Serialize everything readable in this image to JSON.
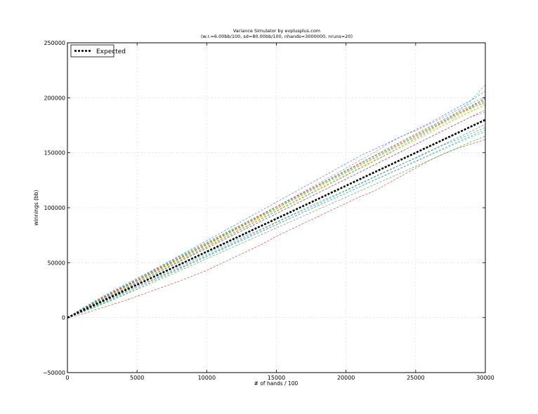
{
  "chart_data": {
    "type": "line",
    "title": "Variance Simulator by evplusplus.com",
    "subtitle": "(w.r.=6.00bb/100, sd=80.00bb/100, nhands=3000000, nruns=20)",
    "xlabel": "# of hands / 100",
    "ylabel": "winnings (bb)",
    "xlim": [
      0,
      30000
    ],
    "ylim": [
      -50000,
      250000
    ],
    "xticks": [
      0,
      5000,
      10000,
      15000,
      20000,
      25000,
      30000
    ],
    "xtick_labels": [
      "0",
      "5000",
      "10000",
      "15000",
      "20000",
      "25000",
      "30000"
    ],
    "yticks": [
      -50000,
      0,
      50000,
      100000,
      150000,
      200000,
      250000
    ],
    "ytick_labels": [
      "−50000",
      "0",
      "50000",
      "100000",
      "150000",
      "200000",
      "250000"
    ],
    "grid": true,
    "legend": {
      "position": "top-left",
      "entries": [
        "Expected"
      ]
    },
    "x": [
      0,
      1000,
      2000,
      3000,
      4000,
      5000,
      6000,
      7000,
      8000,
      9000,
      10000,
      11000,
      12000,
      13000,
      14000,
      15000,
      16000,
      17000,
      18000,
      19000,
      20000,
      21000,
      22000,
      23000,
      24000,
      25000,
      26000,
      27000,
      28000,
      29000,
      30000
    ],
    "series": [
      {
        "name": "Expected",
        "color": "#000000",
        "values": [
          0,
          6000,
          12000,
          18000,
          24000,
          30000,
          36000,
          42000,
          48000,
          54000,
          60000,
          66000,
          72000,
          78000,
          84000,
          90000,
          96000,
          102000,
          108000,
          114000,
          120000,
          126000,
          132000,
          138000,
          144000,
          150000,
          156000,
          162000,
          168000,
          174000,
          180000
        ]
      },
      {
        "color": "#1f77b4",
        "values": [
          0,
          7000,
          13500,
          20500,
          27000,
          33500,
          40000,
          46500,
          53000,
          60000,
          66500,
          73000,
          79500,
          86000,
          92500,
          99000,
          106000,
          112500,
          119000,
          125500,
          132000,
          138500,
          145000,
          152000,
          158500,
          165000,
          171500,
          178000,
          185000,
          192000,
          200000
        ]
      },
      {
        "color": "#2ca02c",
        "values": [
          0,
          5000,
          10500,
          16000,
          22000,
          28000,
          34000,
          40000,
          46000,
          52000,
          58000,
          64000,
          70000,
          75500,
          81000,
          87000,
          93000,
          99000,
          105000,
          110500,
          116000,
          122000,
          128000,
          134000,
          139500,
          145000,
          151000,
          157000,
          162000,
          167500,
          173000
        ]
      },
      {
        "color": "#d62728",
        "values": [
          0,
          3000,
          7000,
          11000,
          15000,
          19500,
          24000,
          28500,
          33000,
          38000,
          43000,
          49000,
          55000,
          61000,
          67000,
          74000,
          80000,
          86000,
          92000,
          98000,
          104000,
          110000,
          115000,
          122000,
          129000,
          136000,
          143000,
          149000,
          154000,
          158000,
          162000
        ]
      },
      {
        "color": "#9467bd",
        "values": [
          0,
          8000,
          15000,
          22000,
          28500,
          34000,
          40500,
          47000,
          53500,
          60000,
          67000,
          73500,
          80000,
          87000,
          94000,
          101000,
          108000,
          115000,
          122000,
          129000,
          136000,
          143000,
          150000,
          158000,
          165000,
          170000,
          176000,
          182000,
          189000,
          195000,
          201000
        ]
      },
      {
        "color": "#17becf",
        "values": [
          0,
          6500,
          13000,
          19000,
          25500,
          32000,
          38500,
          45000,
          51500,
          58000,
          64500,
          71000,
          77500,
          84000,
          90500,
          97000,
          103500,
          110000,
          116500,
          123000,
          129500,
          136000,
          142500,
          149000,
          156000,
          163000,
          170000,
          178000,
          187000,
          198000,
          212000
        ]
      },
      {
        "color": "#bcbd22",
        "values": [
          0,
          7500,
          14000,
          20000,
          26500,
          33000,
          39500,
          46000,
          52000,
          58500,
          65000,
          71500,
          78000,
          84500,
          91000,
          97500,
          104000,
          110500,
          117000,
          123500,
          130000,
          136500,
          143000,
          149500,
          156000,
          162500,
          169000,
          175500,
          182000,
          188000,
          194000
        ]
      },
      {
        "color": "#ff7f0e",
        "values": [
          0,
          6800,
          13800,
          20600,
          27200,
          33900,
          40600,
          47100,
          53700,
          60200,
          66700,
          73200,
          79800,
          86300,
          92800,
          99300,
          105800,
          112300,
          118800,
          125300,
          131800,
          138300,
          144800,
          151200,
          157700,
          164200,
          170700,
          177200,
          183700,
          190100,
          196600
        ]
      },
      {
        "color": "#1f77b4",
        "values": [
          0,
          5500,
          11500,
          17000,
          22500,
          28000,
          33500,
          39000,
          44500,
          50500,
          56500,
          62500,
          68500,
          74500,
          80500,
          86500,
          92500,
          98000,
          103500,
          109500,
          115500,
          121500,
          127500,
          133500,
          139500,
          145500,
          151500,
          157500,
          163500,
          169500,
          176000
        ]
      },
      {
        "color": "#2ca02c",
        "values": [
          0,
          7200,
          14200,
          21000,
          27500,
          34000,
          40800,
          47500,
          54000,
          60500,
          67000,
          73800,
          80500,
          87000,
          93500,
          100000,
          106800,
          113500,
          120000,
          126500,
          133000,
          139800,
          146500,
          153000,
          159500,
          166000,
          172500,
          179000,
          185500,
          191800,
          198000
        ]
      },
      {
        "color": "#d62728",
        "values": [
          0,
          6200,
          12800,
          19200,
          25500,
          31800,
          38000,
          44300,
          50600,
          56900,
          63200,
          69500,
          75800,
          82100,
          88400,
          94700,
          101000,
          107300,
          113600,
          119900,
          126200,
          132500,
          138800,
          145100,
          151400,
          157700,
          164000,
          170300,
          176600,
          182900,
          189000
        ]
      },
      {
        "color": "#9467bd",
        "values": [
          0,
          4800,
          9800,
          15200,
          20800,
          26500,
          32300,
          38000,
          43800,
          49600,
          55400,
          61200,
          67000,
          72800,
          78600,
          84400,
          90200,
          96000,
          101800,
          107600,
          113400,
          119200,
          125000,
          130800,
          136600,
          142400,
          148200,
          154000,
          159800,
          165500,
          171000
        ]
      },
      {
        "color": "#17becf",
        "values": [
          0,
          7800,
          15500,
          22800,
          29500,
          36000,
          42500,
          49000,
          55500,
          62000,
          68500,
          75000,
          81500,
          88000,
          94500,
          101000,
          107500,
          114000,
          120500,
          127000,
          133500,
          140000,
          146500,
          153000,
          159500,
          166000,
          172500,
          179000,
          185000,
          190500,
          196000
        ]
      },
      {
        "color": "#bcbd22",
        "values": [
          0,
          5800,
          12000,
          18500,
          25000,
          31500,
          38000,
          44500,
          51000,
          57500,
          64000,
          70500,
          77000,
          83500,
          90000,
          96500,
          103000,
          109500,
          116000,
          122500,
          129000,
          135500,
          142000,
          148500,
          155000,
          161500,
          168000,
          174500,
          181000,
          187500,
          193000
        ]
      },
      {
        "color": "#ff7f0e",
        "values": [
          0,
          6600,
          13200,
          19800,
          26400,
          33000,
          39600,
          46200,
          52800,
          59400,
          66000,
          72600,
          79200,
          85800,
          92400,
          99000,
          105600,
          112200,
          118800,
          125400,
          132000,
          138600,
          145200,
          151800,
          158400,
          165000,
          171600,
          178200,
          184800,
          191400,
          197500
        ]
      },
      {
        "color": "#1f77b4",
        "values": [
          0,
          6900,
          14000,
          21000,
          28000,
          35000,
          42000,
          49000,
          56000,
          63000,
          70000,
          77000,
          84000,
          91000,
          98000,
          105000,
          112000,
          119000,
          126000,
          133000,
          140000,
          147000,
          153000,
          159000,
          165000,
          171000,
          177000,
          184000,
          191000,
          198000,
          206000
        ]
      },
      {
        "color": "#2ca02c",
        "values": [
          0,
          4500,
          9500,
          14800,
          20200,
          25700,
          31200,
          36800,
          42400,
          48000,
          53600,
          59200,
          64800,
          70400,
          76000,
          81600,
          87200,
          92800,
          98400,
          104000,
          109600,
          115200,
          120800,
          126400,
          132000,
          137600,
          143200,
          148800,
          154400,
          160000,
          165000
        ]
      },
      {
        "color": "#d62728",
        "values": [
          0,
          7400,
          14600,
          21600,
          28400,
          35000,
          41600,
          48200,
          54800,
          61400,
          68000,
          74600,
          81200,
          87800,
          94400,
          101000,
          107600,
          114200,
          120800,
          127400,
          134000,
          140600,
          147200,
          153800,
          160400,
          167000,
          173600,
          180200,
          186800,
          193000,
          199000
        ]
      },
      {
        "color": "#9467bd",
        "values": [
          0,
          6300,
          12600,
          18900,
          25200,
          31500,
          37800,
          44100,
          50400,
          56700,
          63000,
          69300,
          75600,
          81900,
          88200,
          94500,
          100800,
          107100,
          113400,
          119700,
          126000,
          132300,
          138600,
          144900,
          151200,
          157500,
          163800,
          170100,
          176400,
          182700,
          187000
        ]
      },
      {
        "color": "#17becf",
        "values": [
          0,
          5200,
          10800,
          16400,
          22100,
          27800,
          33500,
          39200,
          44900,
          50600,
          56300,
          62000,
          67700,
          73400,
          79100,
          84800,
          90500,
          96200,
          101900,
          107600,
          113300,
          119000,
          124700,
          130400,
          136100,
          141800,
          147500,
          153200,
          158900,
          164600,
          169000
        ]
      },
      {
        "color": "#bcbd22",
        "values": [
          0,
          6700,
          13300,
          19900,
          26500,
          33100,
          39700,
          46300,
          52900,
          59500,
          66100,
          72700,
          79300,
          85900,
          92500,
          99100,
          105700,
          112300,
          118900,
          125500,
          132100,
          138700,
          145300,
          151900,
          158500,
          165100,
          171700,
          178300,
          184900,
          191000,
          195000
        ]
      }
    ]
  }
}
